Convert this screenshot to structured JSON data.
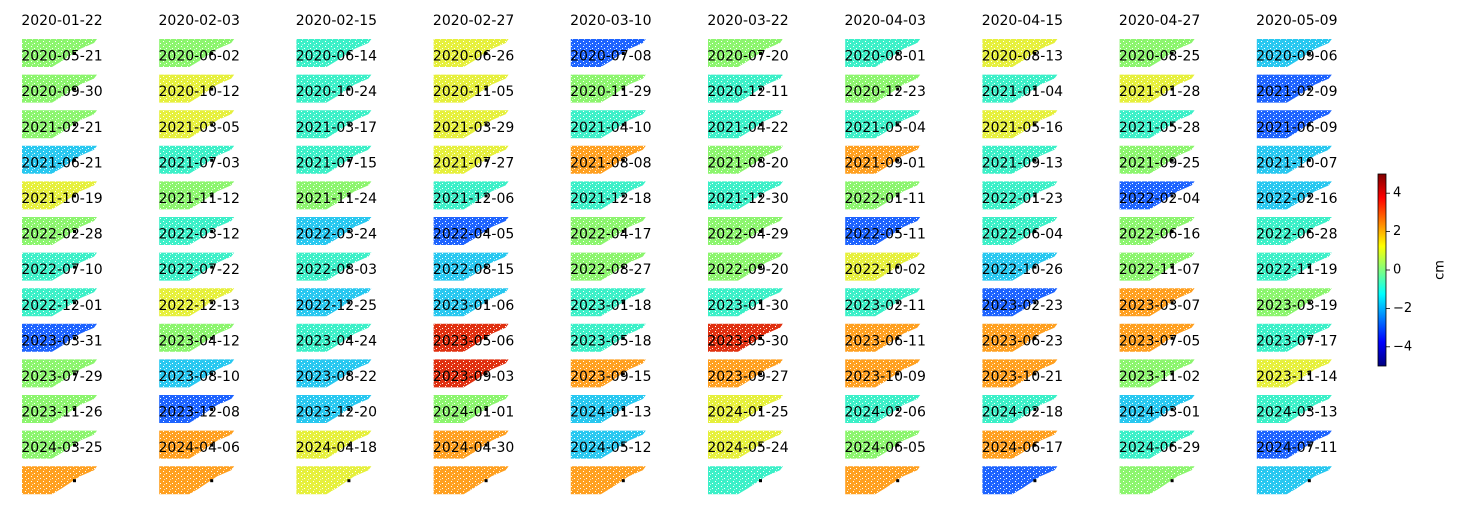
{
  "chart_data": {
    "type": "small-multiples",
    "panels": [
      "2020-01-22",
      "2020-02-03",
      "2020-02-15",
      "2020-02-27",
      "2020-03-10",
      "2020-03-22",
      "2020-04-03",
      "2020-04-15",
      "2020-04-27",
      "2020-05-09",
      "2020-05-21",
      "2020-06-02",
      "2020-06-14",
      "2020-06-26",
      "2020-07-08",
      "2020-07-20",
      "2020-08-01",
      "2020-08-13",
      "2020-08-25",
      "2020-09-06",
      "2020-09-30",
      "2020-10-12",
      "2020-10-24",
      "2020-11-05",
      "2020-11-29",
      "2020-12-11",
      "2020-12-23",
      "2021-01-04",
      "2021-01-28",
      "2021-02-09",
      "2021-02-21",
      "2021-03-05",
      "2021-03-17",
      "2021-03-29",
      "2021-04-10",
      "2021-04-22",
      "2021-05-04",
      "2021-05-16",
      "2021-05-28",
      "2021-06-09",
      "2021-06-21",
      "2021-07-03",
      "2021-07-15",
      "2021-07-27",
      "2021-08-08",
      "2021-08-20",
      "2021-09-01",
      "2021-09-13",
      "2021-09-25",
      "2021-10-07",
      "2021-10-19",
      "2021-11-12",
      "2021-11-24",
      "2021-12-06",
      "2021-12-18",
      "2021-12-30",
      "2022-01-11",
      "2022-01-23",
      "2022-02-04",
      "2022-02-16",
      "2022-02-28",
      "2022-03-12",
      "2022-03-24",
      "2022-04-05",
      "2022-04-17",
      "2022-04-29",
      "2022-05-11",
      "2022-06-04",
      "2022-06-16",
      "2022-06-28",
      "2022-07-10",
      "2022-07-22",
      "2022-08-03",
      "2022-08-15",
      "2022-08-27",
      "2022-09-20",
      "2022-10-02",
      "2022-10-26",
      "2022-11-07",
      "2022-11-19",
      "2022-12-01",
      "2022-12-13",
      "2022-12-25",
      "2023-01-06",
      "2023-01-18",
      "2023-01-30",
      "2023-02-11",
      "2023-02-23",
      "2023-03-07",
      "2023-03-19",
      "2023-03-31",
      "2023-04-12",
      "2023-04-24",
      "2023-05-06",
      "2023-05-18",
      "2023-05-30",
      "2023-06-11",
      "2023-06-23",
      "2023-07-05",
      "2023-07-17",
      "2023-07-29",
      "2023-08-10",
      "2023-08-22",
      "2023-09-03",
      "2023-09-15",
      "2023-09-27",
      "2023-10-09",
      "2023-10-21",
      "2023-11-02",
      "2023-11-14",
      "2023-11-26",
      "2023-12-08",
      "2023-12-20",
      "2024-01-01",
      "2024-01-13",
      "2024-01-25",
      "2024-02-06",
      "2024-02-18",
      "2024-03-01",
      "2024-03-13",
      "2024-03-25",
      "2024-04-06",
      "2024-04-18",
      "2024-04-30",
      "2024-05-12",
      "2024-05-24",
      "2024-06-05",
      "2024-06-17",
      "2024-06-29",
      "2024-07-11"
    ],
    "panel_colors": [
      "#8cf56e",
      "#8cf56e",
      "#3cf0c8",
      "#e6f03c",
      "#1e64ff",
      "#8cf56e",
      "#3cf0c8",
      "#e6f03c",
      "#8cf56e",
      "#28c8f0",
      "#8cf56e",
      "#e6f03c",
      "#3cf0c8",
      "#e6f03c",
      "#8cf56e",
      "#3cf0c8",
      "#8cf56e",
      "#3cf0c8",
      "#e6f03c",
      "#1e64ff",
      "#8cf56e",
      "#e6f03c",
      "#3cf0c8",
      "#e6f03c",
      "#3cf0c8",
      "#3cf0c8",
      "#3cf0c8",
      "#e6f03c",
      "#3cf0c8",
      "#1e64ff",
      "#28c8f0",
      "#3cf0c8",
      "#3cf0c8",
      "#e6f03c",
      "#ffa020",
      "#8cf56e",
      "#ffa020",
      "#3cf0c8",
      "#8cf56e",
      "#28c8f0",
      "#e6f03c",
      "#8cf56e",
      "#8cf56e",
      "#3cf0c8",
      "#3cf0c8",
      "#3cf0c8",
      "#8cf56e",
      "#3cf0c8",
      "#1e64ff",
      "#28c8f0",
      "#8cf56e",
      "#3cf0c8",
      "#28c8f0",
      "#1e64ff",
      "#8cf56e",
      "#8cf56e",
      "#1e64ff",
      "#3cf0c8",
      "#8cf56e",
      "#3cf0c8",
      "#3cf0c8",
      "#3cf0c8",
      "#3cf0c8",
      "#28c8f0",
      "#8cf56e",
      "#8cf56e",
      "#e6f03c",
      "#28c8f0",
      "#8cf56e",
      "#3cf0c8",
      "#3cf0c8",
      "#e6f03c",
      "#28c8f0",
      "#28c8f0",
      "#3cf0c8",
      "#3cf0c8",
      "#3cf0c8",
      "#1e64ff",
      "#ffa020",
      "#8cf56e",
      "#1e64ff",
      "#8cf56e",
      "#3cf0c8",
      "#e03010",
      "#3cf0c8",
      "#e03010",
      "#ffa020",
      "#ffa020",
      "#ffa020",
      "#3cf0c8",
      "#8cf56e",
      "#28c8f0",
      "#28c8f0",
      "#e03010",
      "#ffa020",
      "#ffa020",
      "#ffa020",
      "#ffa020",
      "#8cf56e",
      "#e6f03c",
      "#8cf56e",
      "#1e64ff",
      "#28c8f0",
      "#8cf56e",
      "#28c8f0",
      "#e6f03c",
      "#3cf0c8",
      "#3cf0c8",
      "#28c8f0",
      "#3cf0c8",
      "#8cf56e",
      "#ffa020",
      "#e6f03c",
      "#ffa020",
      "#28c8f0",
      "#e6f03c",
      "#8cf56e",
      "#ffa020",
      "#3cf0c8",
      "#1e64ff",
      "#ffa020",
      "#ffa020",
      "#e6f03c",
      "#ffa020",
      "#ffa020",
      "#3cf0c8",
      "#ffa020",
      "#1e64ff",
      "#8cf56e",
      "#28c8f0"
    ],
    "colorbar_label": "cm",
    "clim": [
      -5,
      5
    ],
    "cticks": [
      4,
      2,
      0,
      {
        "value": -2,
        "label": "−2"
      },
      {
        "value": -4,
        "label": "−4"
      }
    ],
    "colormap": [
      "#00007f",
      "#0000ff",
      "#007fff",
      "#00ffff",
      "#7fff7f",
      "#ffff00",
      "#ff7f00",
      "#ff0000",
      "#7f0000"
    ]
  }
}
